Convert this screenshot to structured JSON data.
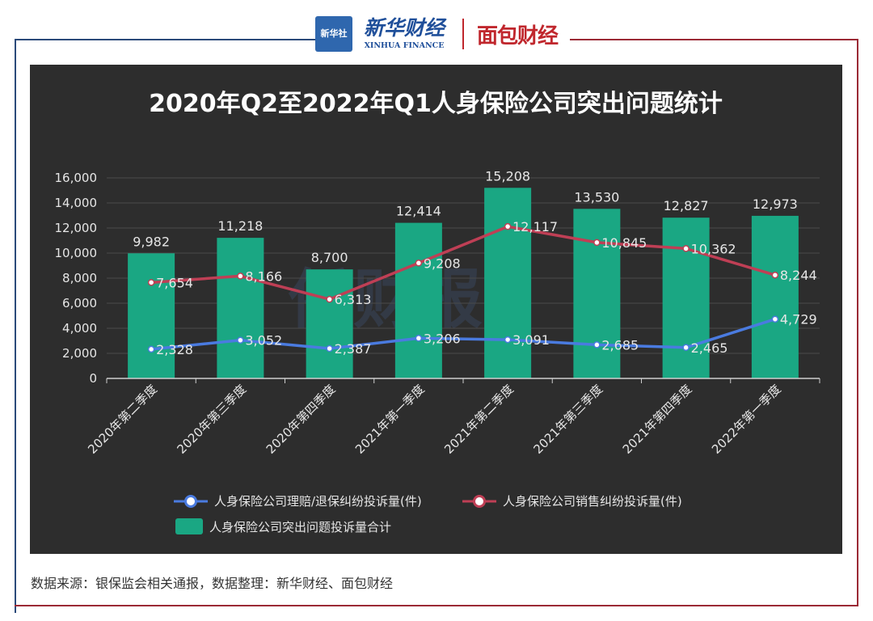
{
  "header": {
    "logo_text": "新华社",
    "brand_name": "新华财经",
    "brand_english": "XINHUA FINANCE",
    "partner_name": "面包财经"
  },
  "chart_data": {
    "type": "bar",
    "title": "2020年Q2至2022年Q1人身保险公司突出问题统计",
    "categories": [
      "2020年第二季度",
      "2020年第三季度",
      "2020年第四季度",
      "2021年第一季度",
      "2021年第二季度",
      "2021年第三季度",
      "2021年第四季度",
      "2022年第一季度"
    ],
    "ylim": [
      0,
      16000
    ],
    "yticks": [
      "0",
      "2,000",
      "4,000",
      "6,000",
      "8,000",
      "10,000",
      "12,000",
      "14,000",
      "16,000"
    ],
    "grid": true,
    "series": [
      {
        "name": "人身保险公司突出问题投诉量合计",
        "type": "bar",
        "color": "#1aa783",
        "values": [
          9982,
          11218,
          8700,
          12414,
          15208,
          13530,
          12827,
          12973
        ],
        "labels": [
          "9,982",
          "11,218",
          "8,700",
          "12,414",
          "15,208",
          "13,530",
          "12,827",
          "12,973"
        ]
      },
      {
        "name": "人身保险公司理赔/退保纠纷投诉量(件)",
        "type": "line",
        "color": "#4a7be0",
        "values": [
          2328,
          3052,
          2387,
          3206,
          3091,
          2685,
          2465,
          4729
        ],
        "labels": [
          "2,328",
          "3,052",
          "2,387",
          "3,206",
          "3,091",
          "2,685",
          "2,465",
          "4,729"
        ]
      },
      {
        "name": "人身保险公司销售纠纷投诉量(件)",
        "type": "line",
        "color": "#bf3f55",
        "values": [
          7654,
          8166,
          6313,
          9208,
          12117,
          10845,
          10362,
          8244
        ],
        "labels": [
          "7,654",
          "8,166",
          "6,313",
          "9,208",
          "12,117",
          "10,845",
          "10,362",
          "8,244"
        ]
      }
    ],
    "legend": [
      "人身保险公司理赔/退保纠纷投诉量(件)",
      "人身保险公司销售纠纷投诉量(件)",
      "人身保险公司突出问题投诉量合计"
    ],
    "watermark": "侨财报"
  },
  "footer": {
    "source": "数据来源：银保监会相关通报，数据整理：新华财经、面包财经"
  }
}
